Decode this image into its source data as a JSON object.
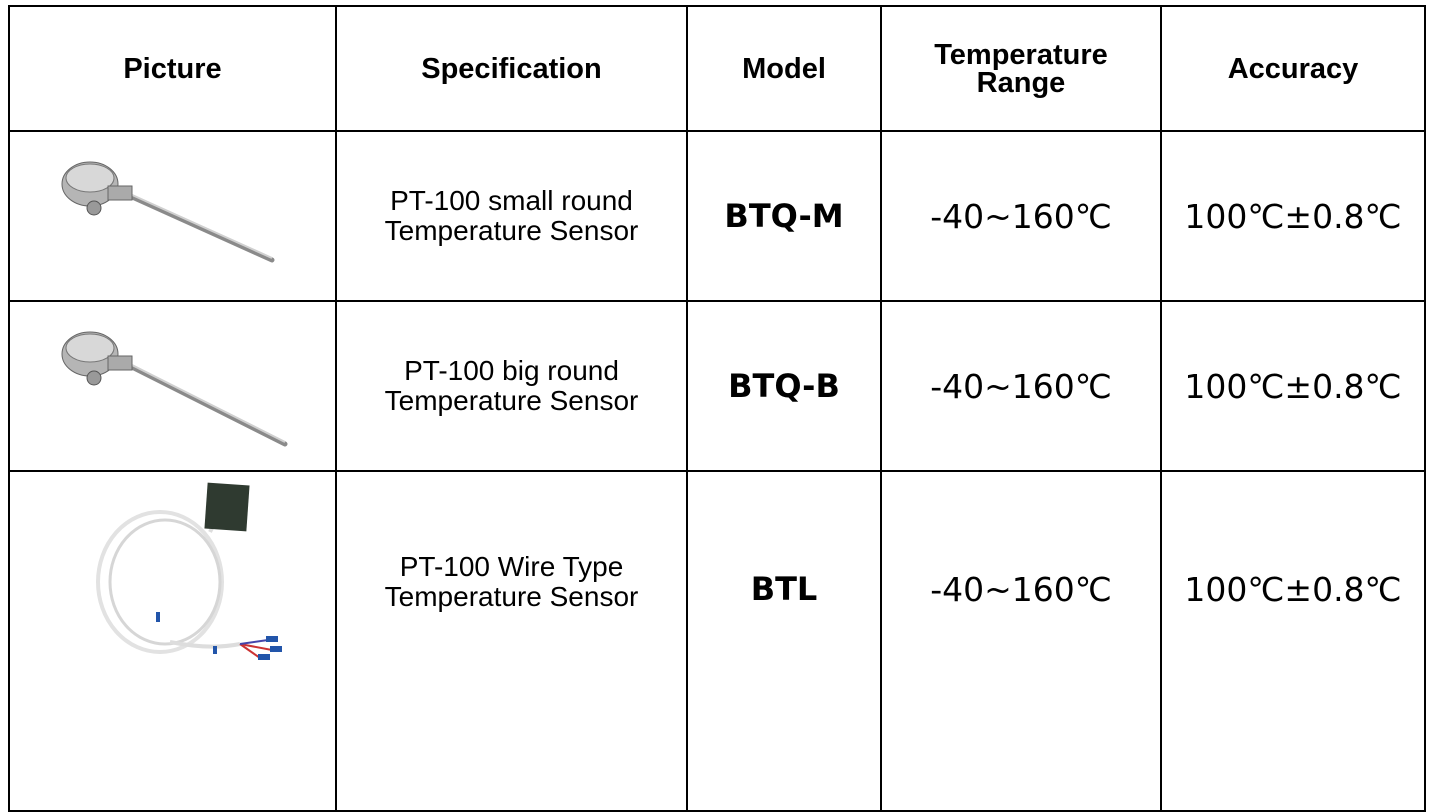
{
  "header": {
    "columns": [
      "Picture",
      "Specification",
      "Model",
      "Temperature Range",
      "Accuracy"
    ]
  },
  "rows": [
    {
      "specification": "PT-100 small round Temperature Sensor",
      "model": "BTQ-M",
      "temperature_range": "-40~160℃",
      "accuracy": "100℃±0.8℃"
    },
    {
      "specification": "PT-100 big round Temperature Sensor",
      "model": "BTQ-B",
      "temperature_range": "-40~160℃",
      "accuracy": "100℃±0.8℃"
    },
    {
      "specification": "PT-100 Wire Type Temperature Sensor",
      "model": "BTL",
      "temperature_range": "-40~160℃",
      "accuracy": "100℃±0.8℃"
    }
  ]
}
